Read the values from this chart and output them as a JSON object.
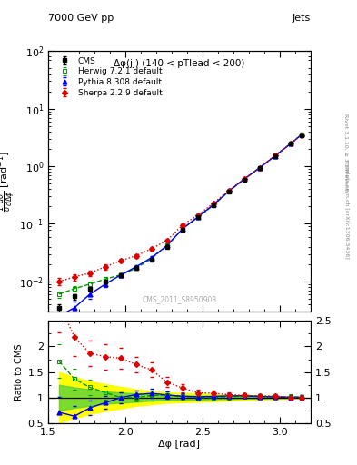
{
  "title_top": "7000 GeV pp",
  "title_right": "Jets",
  "plot_title": "Δφ(jj) (140 < pTlead < 200)",
  "xlabel": "Δφ [rad]",
  "ylabel_main": "$\\frac{1}{\\sigma}\\frac{d\\sigma}{d\\Delta\\phi}$ [rad$^{-1}$]",
  "ylabel_ratio": "Ratio to CMS",
  "watermark": "CMS_2011_S8950903",
  "cms_x": [
    1.57,
    1.67,
    1.77,
    1.87,
    1.97,
    2.07,
    2.17,
    2.27,
    2.37,
    2.47,
    2.57,
    2.67,
    2.77,
    2.87,
    2.97,
    3.07,
    3.14
  ],
  "cms_y": [
    0.0035,
    0.0055,
    0.0075,
    0.01,
    0.013,
    0.017,
    0.024,
    0.04,
    0.08,
    0.13,
    0.21,
    0.36,
    0.58,
    0.92,
    1.5,
    2.45,
    3.5
  ],
  "cms_yerr": [
    0.0005,
    0.0006,
    0.0006,
    0.0008,
    0.001,
    0.001,
    0.001,
    0.002,
    0.003,
    0.005,
    0.008,
    0.012,
    0.018,
    0.025,
    0.04,
    0.08,
    0.1
  ],
  "herwig_x": [
    1.57,
    1.67,
    1.77,
    1.87,
    1.97,
    2.07,
    2.17,
    2.27,
    2.37,
    2.47,
    2.57,
    2.67,
    2.77,
    2.87,
    2.97,
    3.07,
    3.14
  ],
  "herwig_y": [
    0.006,
    0.0075,
    0.009,
    0.011,
    0.013,
    0.017,
    0.025,
    0.042,
    0.082,
    0.13,
    0.21,
    0.365,
    0.6,
    0.94,
    1.53,
    2.48,
    3.55
  ],
  "herwig_yerr": [
    0.0008,
    0.0008,
    0.0009,
    0.001,
    0.001,
    0.001,
    0.002,
    0.002,
    0.004,
    0.005,
    0.008,
    0.012,
    0.018,
    0.025,
    0.04,
    0.08,
    0.1
  ],
  "pythia_x": [
    1.57,
    1.67,
    1.77,
    1.87,
    1.97,
    2.07,
    2.17,
    2.27,
    2.37,
    2.47,
    2.57,
    2.67,
    2.77,
    2.87,
    2.97,
    3.07,
    3.14
  ],
  "pythia_y": [
    0.0025,
    0.0035,
    0.006,
    0.009,
    0.013,
    0.018,
    0.026,
    0.042,
    0.082,
    0.132,
    0.215,
    0.372,
    0.6,
    0.94,
    1.52,
    2.46,
    3.52
  ],
  "pythia_yerr": [
    0.001,
    0.001,
    0.001,
    0.001,
    0.001,
    0.001,
    0.002,
    0.002,
    0.003,
    0.005,
    0.008,
    0.012,
    0.018,
    0.025,
    0.04,
    0.08,
    0.1
  ],
  "sherpa_x": [
    1.57,
    1.67,
    1.77,
    1.87,
    1.97,
    2.07,
    2.17,
    2.27,
    2.37,
    2.47,
    2.57,
    2.67,
    2.77,
    2.87,
    2.97,
    3.07,
    3.14
  ],
  "sherpa_y": [
    0.01,
    0.012,
    0.014,
    0.018,
    0.023,
    0.028,
    0.037,
    0.052,
    0.095,
    0.142,
    0.228,
    0.38,
    0.605,
    0.95,
    1.54,
    2.46,
    3.5
  ],
  "sherpa_yerr": [
    0.0015,
    0.0015,
    0.0015,
    0.002,
    0.002,
    0.002,
    0.003,
    0.003,
    0.005,
    0.006,
    0.009,
    0.013,
    0.019,
    0.025,
    0.04,
    0.08,
    0.1
  ],
  "cms_color": "#000000",
  "herwig_color": "#009900",
  "pythia_color": "#0000ee",
  "sherpa_color": "#dd0000",
  "yellow_band_lo": [
    0.5,
    0.6,
    0.68,
    0.74,
    0.79,
    0.84,
    0.87,
    0.9,
    0.91,
    0.92,
    0.93,
    0.94,
    0.95,
    0.96,
    0.97,
    0.98,
    0.99
  ],
  "yellow_band_hi": [
    1.5,
    1.4,
    1.32,
    1.26,
    1.21,
    1.16,
    1.13,
    1.1,
    1.09,
    1.08,
    1.07,
    1.06,
    1.05,
    1.04,
    1.03,
    1.02,
    1.01
  ],
  "green_band_lo": [
    0.75,
    0.8,
    0.84,
    0.88,
    0.9,
    0.92,
    0.94,
    0.95,
    0.96,
    0.96,
    0.97,
    0.97,
    0.98,
    0.98,
    0.99,
    0.99,
    0.995
  ],
  "green_band_hi": [
    1.25,
    1.2,
    1.16,
    1.12,
    1.1,
    1.08,
    1.06,
    1.05,
    1.04,
    1.04,
    1.03,
    1.03,
    1.02,
    1.02,
    1.01,
    1.01,
    1.005
  ],
  "ylim_main_lo": 0.003,
  "ylim_main_hi": 100,
  "ylim_ratio_lo": 0.5,
  "ylim_ratio_hi": 2.5,
  "xlim_lo": 1.5,
  "xlim_hi": 3.2,
  "right_text1": "Rivet 3.1.10, ≥ 3.2M events",
  "right_text2": "mcplots.cern.ch [arXiv:1306.3436]"
}
